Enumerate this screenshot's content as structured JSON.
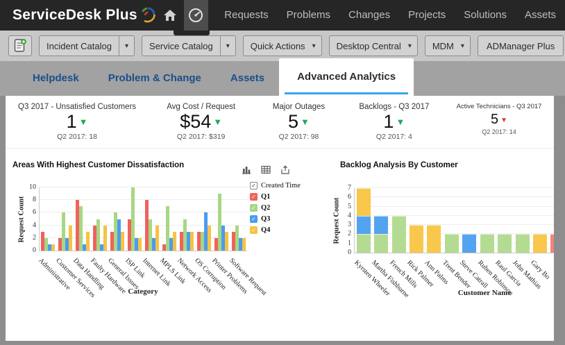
{
  "nav": {
    "brand": "ServiceDesk Plus",
    "items": [
      "Requests",
      "Problems",
      "Changes",
      "Projects",
      "Solutions",
      "Assets"
    ]
  },
  "toolbar": {
    "buttons": [
      {
        "label": "Incident Catalog",
        "style": "split"
      },
      {
        "label": "Service Catalog",
        "style": "split"
      },
      {
        "label": "Quick Actions",
        "style": "arrow"
      },
      {
        "label": "Desktop Central",
        "style": "arrow"
      },
      {
        "label": "MDM",
        "style": "arrow"
      },
      {
        "label": "ADManager Plus",
        "style": "plain"
      }
    ]
  },
  "tabs": {
    "items": [
      {
        "label": "Helpdesk",
        "active": false
      },
      {
        "label": "Problem & Change",
        "active": false
      },
      {
        "label": "Assets",
        "active": false
      },
      {
        "label": "Advanced Analytics",
        "active": true
      }
    ]
  },
  "kpis": [
    {
      "title": "Q3 2017 - Unsatisfied Customers",
      "value": "1",
      "trend": "down",
      "trend_color": "#22a85c",
      "compare": "Q2 2017: 18",
      "size": "normal"
    },
    {
      "title": "Avg Cost / Request",
      "value": "$54",
      "trend": "down",
      "trend_color": "#22a85c",
      "compare": "Q2 2017: $319",
      "size": "normal"
    },
    {
      "title": "Major Outages",
      "value": "5",
      "trend": "down",
      "trend_color": "#22a85c",
      "compare": "Q2 2017: 98",
      "size": "normal"
    },
    {
      "title": "Backlogs - Q3 2017",
      "value": "1",
      "trend": "down",
      "trend_color": "#22a85c",
      "compare": "Q2 2017: 4",
      "size": "normal"
    },
    {
      "title": "Active Technicians - Q3 2017",
      "value": "5",
      "trend": "down",
      "trend_color": "#e03228",
      "compare": "Q2 2017: 14",
      "size": "small"
    }
  ],
  "chart_tools": [
    "bar-chart-icon",
    "table-icon",
    "export-icon"
  ],
  "chart_data": [
    {
      "type": "bar",
      "title": "Areas With Highest Customer Dissatisfaction",
      "xlabel": "Category",
      "ylabel": "Request Count",
      "ylim": [
        0,
        10
      ],
      "yticks": [
        0,
        2,
        4,
        6,
        8,
        10
      ],
      "grid": true,
      "legend_position": "right",
      "legend_title": "Created Time",
      "categories": [
        "Administrative",
        "Customer Services",
        "Data Handling",
        "Faulty Hardware",
        "General Issues",
        "ISP Link",
        "Internet Link",
        "MPLS Link",
        "Network Access",
        "OS Corruption",
        "Printer Problems",
        "Software Request"
      ],
      "series": [
        {
          "name": "Q1",
          "color": "#f0625d",
          "values": [
            3,
            2,
            8,
            4,
            3,
            5,
            8,
            1,
            3,
            3,
            2,
            3
          ]
        },
        {
          "name": "Q2",
          "color": "#a6d884",
          "values": [
            2,
            6,
            7,
            5,
            6,
            10,
            5,
            7,
            5,
            3,
            9,
            4
          ]
        },
        {
          "name": "Q3",
          "color": "#4a9cf1",
          "values": [
            1,
            2,
            1,
            1,
            5,
            2,
            2,
            2,
            3,
            6,
            4,
            2
          ]
        },
        {
          "name": "Q4",
          "color": "#f7c342",
          "values": [
            1,
            4,
            3,
            4,
            3,
            2,
            4,
            3,
            3,
            4,
            3,
            2
          ]
        }
      ]
    },
    {
      "type": "bar",
      "stacked": true,
      "title": "Backlog Analysis By Customer",
      "xlabel": "Customer Name",
      "ylabel": "Request Count",
      "ylim": [
        0,
        7
      ],
      "yticks": [
        0,
        1,
        2,
        3,
        4,
        5,
        6,
        7
      ],
      "grid": true,
      "categories": [
        "Kyrsten Wheeler",
        "Martha Fishburne",
        "French Mills",
        "Rick Palmer",
        "Ann Palms",
        "Trent Bender",
        "Steve Catrall",
        "Ruben Robinson",
        "Raul Garcia",
        "John Mathias",
        "Gary Bo",
        ""
      ],
      "series": [
        {
          "name": "segment-green",
          "color": "#b4db92",
          "values": [
            2,
            2,
            4,
            0,
            0,
            2,
            0,
            2,
            2,
            2,
            0,
            0
          ]
        },
        {
          "name": "segment-blue",
          "color": "#54a3f0",
          "values": [
            2,
            2,
            0,
            0,
            0,
            0,
            2,
            0,
            0,
            0,
            0,
            0
          ]
        },
        {
          "name": "segment-yellow",
          "color": "#f8c74b",
          "values": [
            3,
            0,
            0,
            3,
            3,
            0,
            0,
            0,
            0,
            0,
            2,
            0
          ]
        },
        {
          "name": "segment-red",
          "color": "#f4837c",
          "values": [
            0,
            0,
            0,
            0,
            0,
            0,
            0,
            0,
            0,
            0,
            0,
            2
          ]
        }
      ]
    }
  ]
}
